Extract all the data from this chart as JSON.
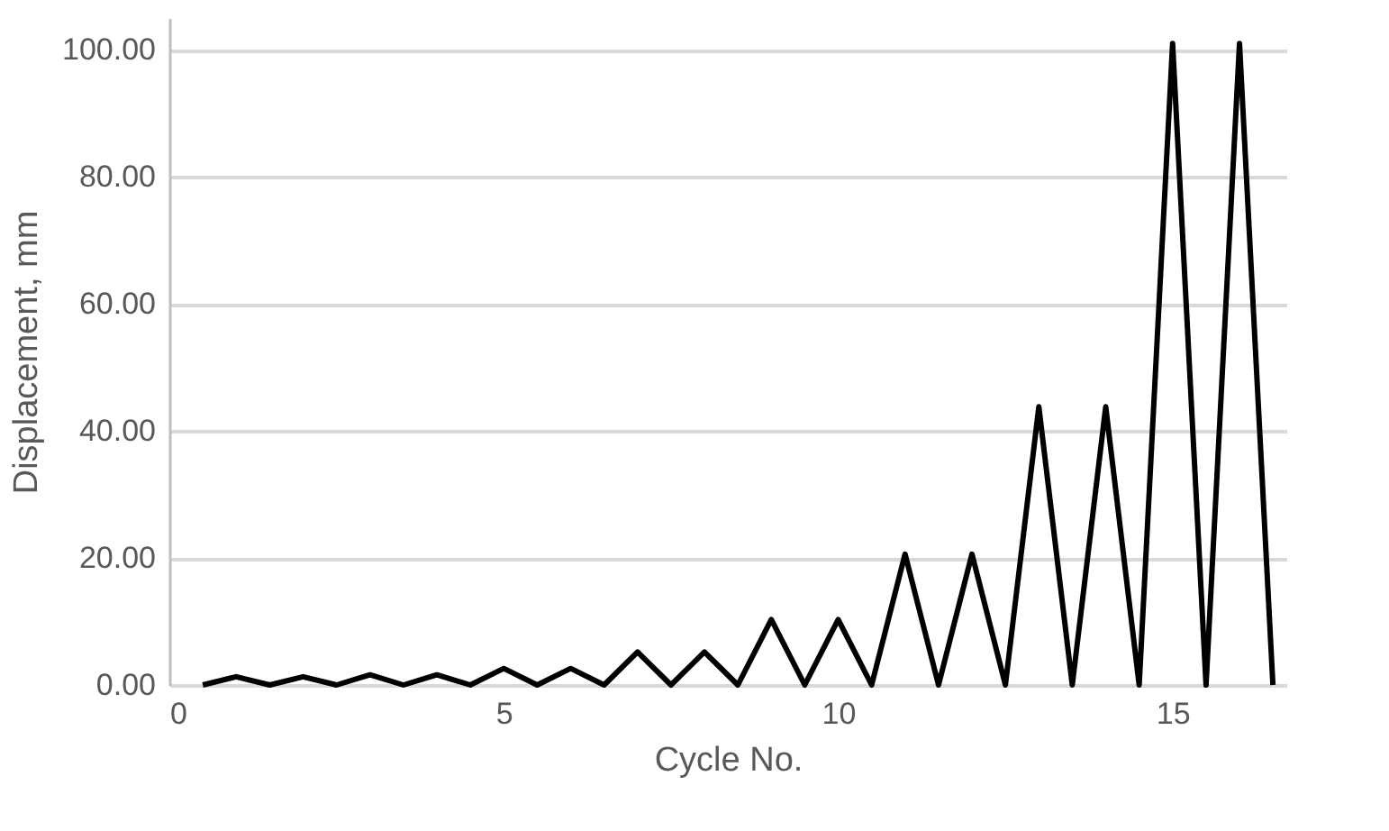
{
  "chart_data": {
    "type": "line",
    "xlabel": "Cycle No.",
    "ylabel": "Displacement, mm",
    "xlim": [
      0,
      16.7
    ],
    "xticks": [
      0,
      5,
      10,
      15
    ],
    "ylim": [
      0,
      105
    ],
    "yticks": [
      {
        "value": 0,
        "label": "0.00"
      },
      {
        "value": 20,
        "label": "20.00"
      },
      {
        "value": 40,
        "label": "40.00"
      },
      {
        "value": 60,
        "label": "60.00"
      },
      {
        "value": 80,
        "label": "80.00"
      },
      {
        "value": 100,
        "label": "100.00"
      }
    ],
    "grid": "y",
    "marker": "none",
    "line_style": "solid",
    "x": [
      0.5,
      1,
      1.5,
      2,
      2.5,
      3,
      3.5,
      4,
      4.5,
      5,
      5.5,
      6,
      6.5,
      7,
      7.5,
      8,
      8.5,
      9,
      9.5,
      10,
      10.5,
      11,
      11.5,
      12,
      12.5,
      13,
      13.5,
      14,
      14.5,
      15,
      15.5,
      16,
      16.5
    ],
    "series": [
      {
        "color": "#000000",
        "values": [
          0,
          1.3,
          0,
          1.3,
          0,
          1.6,
          0,
          1.6,
          0,
          2.6,
          0,
          2.6,
          0,
          5.2,
          0,
          5.2,
          0,
          10.3,
          0,
          10.3,
          0,
          20.6,
          0,
          20.6,
          0,
          43.8,
          0,
          43.8,
          0,
          101,
          0,
          101,
          0
        ]
      }
    ]
  }
}
